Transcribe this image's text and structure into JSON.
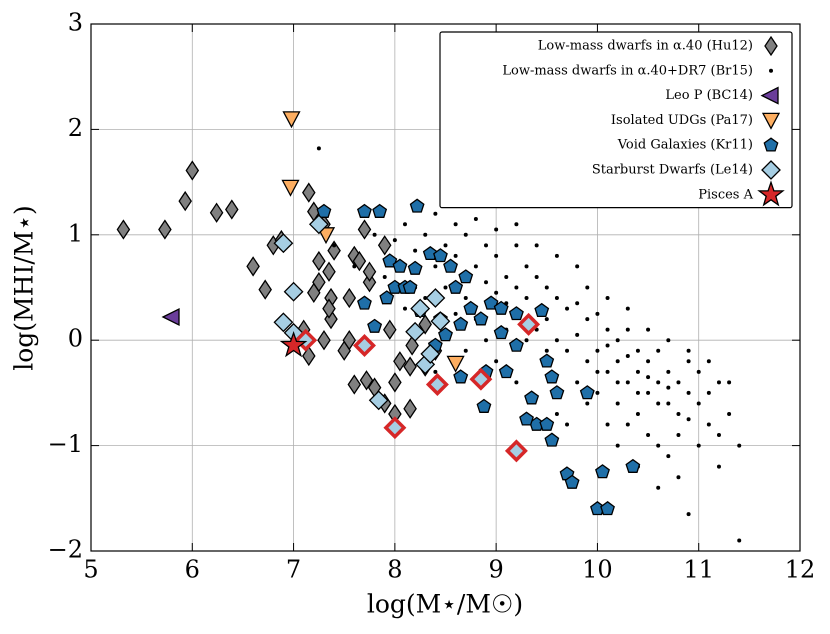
{
  "chart_data": {
    "type": "scatter",
    "xlabel": "log(M⋆/M☉)",
    "ylabel": "log(MHI/M⋆)",
    "xlim": [
      5,
      12
    ],
    "ylim": [
      -2,
      3
    ],
    "xticks": [
      5,
      6,
      7,
      8,
      9,
      10,
      11,
      12
    ],
    "yticks": [
      {
        "value": -2,
        "label": "−2"
      },
      {
        "value": -1,
        "label": "−1"
      },
      0,
      1,
      2,
      3
    ],
    "grid": true,
    "legend": "upper right",
    "series": [
      {
        "name": "Low-mass dwarfs in α.40 (Hu12)",
        "color": "#808080",
        "marker": "d",
        "x": [
          5.32,
          5.73,
          5.93,
          6.0,
          6.24,
          6.39,
          6.6,
          6.72,
          6.8,
          6.88,
          7.1,
          7.15,
          7.2,
          7.25,
          7.25,
          7.3,
          7.2,
          7.35,
          7.3,
          7.37,
          7.37,
          7.15,
          7.5,
          7.55,
          7.55,
          7.6,
          7.65,
          7.7,
          7.75,
          7.75,
          7.6,
          7.72,
          7.8,
          7.9,
          8.0,
          8.0,
          8.05,
          8.15,
          8.17,
          8.3,
          8.3,
          8.4,
          8.15,
          7.9,
          7.95,
          7.4,
          7.35
        ],
        "values": [
          1.05,
          1.05,
          1.32,
          1.61,
          1.21,
          1.24,
          0.7,
          0.48,
          0.9,
          0.95,
          0.1,
          1.4,
          1.22,
          0.75,
          0.55,
          1.1,
          0.45,
          0.65,
          0.0,
          0.4,
          0.2,
          -0.15,
          -0.1,
          0.0,
          0.4,
          0.8,
          0.75,
          1.05,
          0.55,
          0.65,
          -0.42,
          -0.38,
          -0.45,
          -0.6,
          -0.7,
          -0.4,
          -0.2,
          -0.65,
          -0.05,
          0.15,
          -0.25,
          -0.1,
          -0.25,
          0.9,
          0.1,
          0.85,
          0.3
        ]
      },
      {
        "name": "Low-mass dwarfs in α.40+DR7 (Br15)",
        "color": "#000000",
        "marker": ".",
        "x": [
          7.25,
          8.99,
          11.4,
          10.9,
          7.4,
          7.6,
          7.8,
          7.9,
          8.0,
          8.1,
          8.2,
          8.3,
          8.4,
          8.5,
          8.6,
          8.7,
          8.8,
          8.9,
          9.0,
          9.1,
          9.2,
          9.3,
          9.4,
          9.5,
          9.6,
          9.7,
          9.8,
          9.9,
          10.0,
          10.1,
          10.2,
          10.3,
          10.4,
          10.5,
          10.6,
          10.7,
          10.8,
          10.9,
          11.0,
          11.1,
          11.2,
          11.3,
          11.4,
          8.1,
          8.2,
          8.3,
          8.5,
          8.7,
          8.8,
          8.9,
          9.0,
          9.1,
          9.2,
          9.3,
          9.4,
          9.5,
          9.6,
          9.7,
          9.8,
          9.9,
          10.0,
          10.1,
          10.2,
          10.3,
          10.4,
          10.5,
          10.6,
          10.7,
          10.8,
          10.9,
          11.0,
          11.1,
          11.2,
          10.2,
          10.3,
          10.4,
          10.5,
          10.6,
          10.7,
          10.8,
          10.0,
          9.9,
          9.8,
          9.7,
          9.6,
          10.1,
          10.2,
          10.4,
          10.6,
          10.3,
          10.1,
          9.9,
          9.8,
          9.6,
          9.4,
          9.2,
          9.0,
          8.8,
          8.6,
          8.4,
          10.5,
          10.7,
          10.9,
          11.1,
          11.3,
          10.0,
          10.2,
          10.4,
          10.6,
          10.8,
          11.0,
          11.2,
          10.1,
          10.3,
          10.5,
          10.7,
          10.9,
          9.5,
          9.3,
          9.1,
          8.9,
          8.7,
          8.6,
          8.4,
          9.0,
          9.2
        ],
        "values": [
          1.82,
          1.28,
          -1.9,
          -1.65,
          0.9,
          0.7,
          1.0,
          0.6,
          0.95,
          1.1,
          0.85,
          1.0,
          0.7,
          0.9,
          0.8,
          1.0,
          0.7,
          0.9,
          0.8,
          0.6,
          0.9,
          0.7,
          0.6,
          0.5,
          0.4,
          0.3,
          0.35,
          0.2,
          0.25,
          0.1,
          0.0,
          0.1,
          -0.1,
          -0.2,
          -0.1,
          -0.3,
          -0.4,
          -0.5,
          -0.6,
          -0.8,
          -0.9,
          -0.7,
          -1.0,
          0.3,
          0.5,
          0.4,
          0.5,
          0.4,
          0.2,
          0.55,
          0.45,
          0.35,
          0.5,
          0.4,
          0.1,
          0.2,
          0.0,
          -0.1,
          0.05,
          -0.2,
          -0.1,
          -0.3,
          -0.2,
          -0.4,
          -0.3,
          -0.5,
          -0.4,
          -0.6,
          -0.7,
          -0.2,
          -0.3,
          -0.5,
          -0.4,
          -0.6,
          -0.8,
          -0.7,
          -0.9,
          -1.0,
          -1.1,
          -1.3,
          -0.5,
          -0.6,
          -0.4,
          -0.8,
          -0.7,
          -0.8,
          -1.0,
          -1.2,
          -1.4,
          0.3,
          0.4,
          0.5,
          0.7,
          0.8,
          0.9,
          1.1,
          1.05,
          1.15,
          1.1,
          1.2,
          0.1,
          0.0,
          -0.1,
          -0.2,
          -0.4,
          -0.3,
          -0.4,
          -0.5,
          -0.6,
          -0.9,
          -1.0,
          -1.2,
          -0.05,
          -0.15,
          -0.35,
          -0.45,
          -0.75,
          -0.1,
          0.0,
          0.1,
          0.0,
          -0.1,
          0.25,
          -0.3,
          -0.2,
          -0.4
        ]
      },
      {
        "name": "Leo P (BC14)",
        "color": "#6a3d9a",
        "marker": "<",
        "x": [
          5.8
        ],
        "values": [
          0.22
        ]
      },
      {
        "name": "Isolated UDGs (Pa17)",
        "color": "#fdae61",
        "marker": "v",
        "x": [
          6.98,
          6.97,
          7.32,
          8.6
        ],
        "values": [
          2.1,
          1.45,
          1.0,
          -0.22
        ]
      },
      {
        "name": "Void Galaxies (Kr11)",
        "color": "#1f6fa8",
        "marker": "p",
        "x": [
          7.7,
          7.85,
          8.22,
          7.3,
          7.95,
          8.05,
          8.2,
          8.0,
          7.92,
          7.7,
          8.1,
          8.35,
          8.45,
          8.55,
          8.7,
          8.6,
          8.75,
          8.85,
          8.95,
          9.05,
          9.2,
          9.45,
          8.5,
          8.65,
          8.4,
          8.65,
          8.9,
          9.1,
          9.5,
          9.55,
          9.35,
          9.4,
          9.5,
          9.55,
          9.3,
          9.7,
          9.75,
          9.9,
          10.0,
          10.1,
          10.05,
          10.35,
          9.6,
          8.88,
          7.8,
          9.05,
          9.2,
          8.45,
          8.25,
          8.15
        ],
        "values": [
          1.22,
          1.22,
          1.27,
          1.22,
          0.75,
          0.7,
          0.68,
          0.5,
          0.4,
          0.35,
          0.5,
          0.82,
          0.8,
          0.7,
          0.6,
          0.5,
          0.3,
          0.2,
          0.35,
          0.3,
          0.25,
          0.28,
          0.05,
          0.15,
          -0.05,
          -0.35,
          -0.3,
          -0.3,
          -0.2,
          -0.35,
          -0.55,
          -0.8,
          -0.8,
          -0.95,
          -0.75,
          -1.27,
          -1.35,
          -0.5,
          -1.6,
          -1.6,
          -1.25,
          -1.2,
          -0.5,
          -0.63,
          0.13,
          0.07,
          -0.05,
          0.2,
          0.28,
          0.5
        ]
      },
      {
        "name": "Starburst Dwarfs (Le14)",
        "color": "#a6cee3",
        "marker": "D",
        "x": [
          6.9,
          7.0,
          6.9,
          7.0,
          7.25,
          7.84,
          8.0,
          8.2,
          8.3,
          8.35,
          8.4,
          8.45,
          7.7,
          8.42,
          8.85,
          9.2,
          9.32,
          7.12,
          8.25
        ],
        "values": [
          0.92,
          0.46,
          0.17,
          0.07,
          1.1,
          -0.57,
          -0.83,
          0.08,
          -0.23,
          -0.13,
          0.4,
          0.18,
          -0.05,
          -0.42,
          -0.37,
          -1.05,
          0.15,
          0.0,
          0.3
        ],
        "edgecolors": [
          "#000000",
          "#000000",
          "#000000",
          "#000000",
          "#000000",
          "#000000",
          "#d62728",
          "#000000",
          "#000000",
          "#000000",
          "#000000",
          "#000000",
          "#d62728",
          "#d62728",
          "#d62728",
          "#d62728",
          "#d62728",
          "#d62728",
          "#000000"
        ]
      },
      {
        "name": "Pisces A",
        "color": "#d62728",
        "marker": "*",
        "x": [
          7.0
        ],
        "values": [
          -0.05
        ]
      }
    ]
  }
}
